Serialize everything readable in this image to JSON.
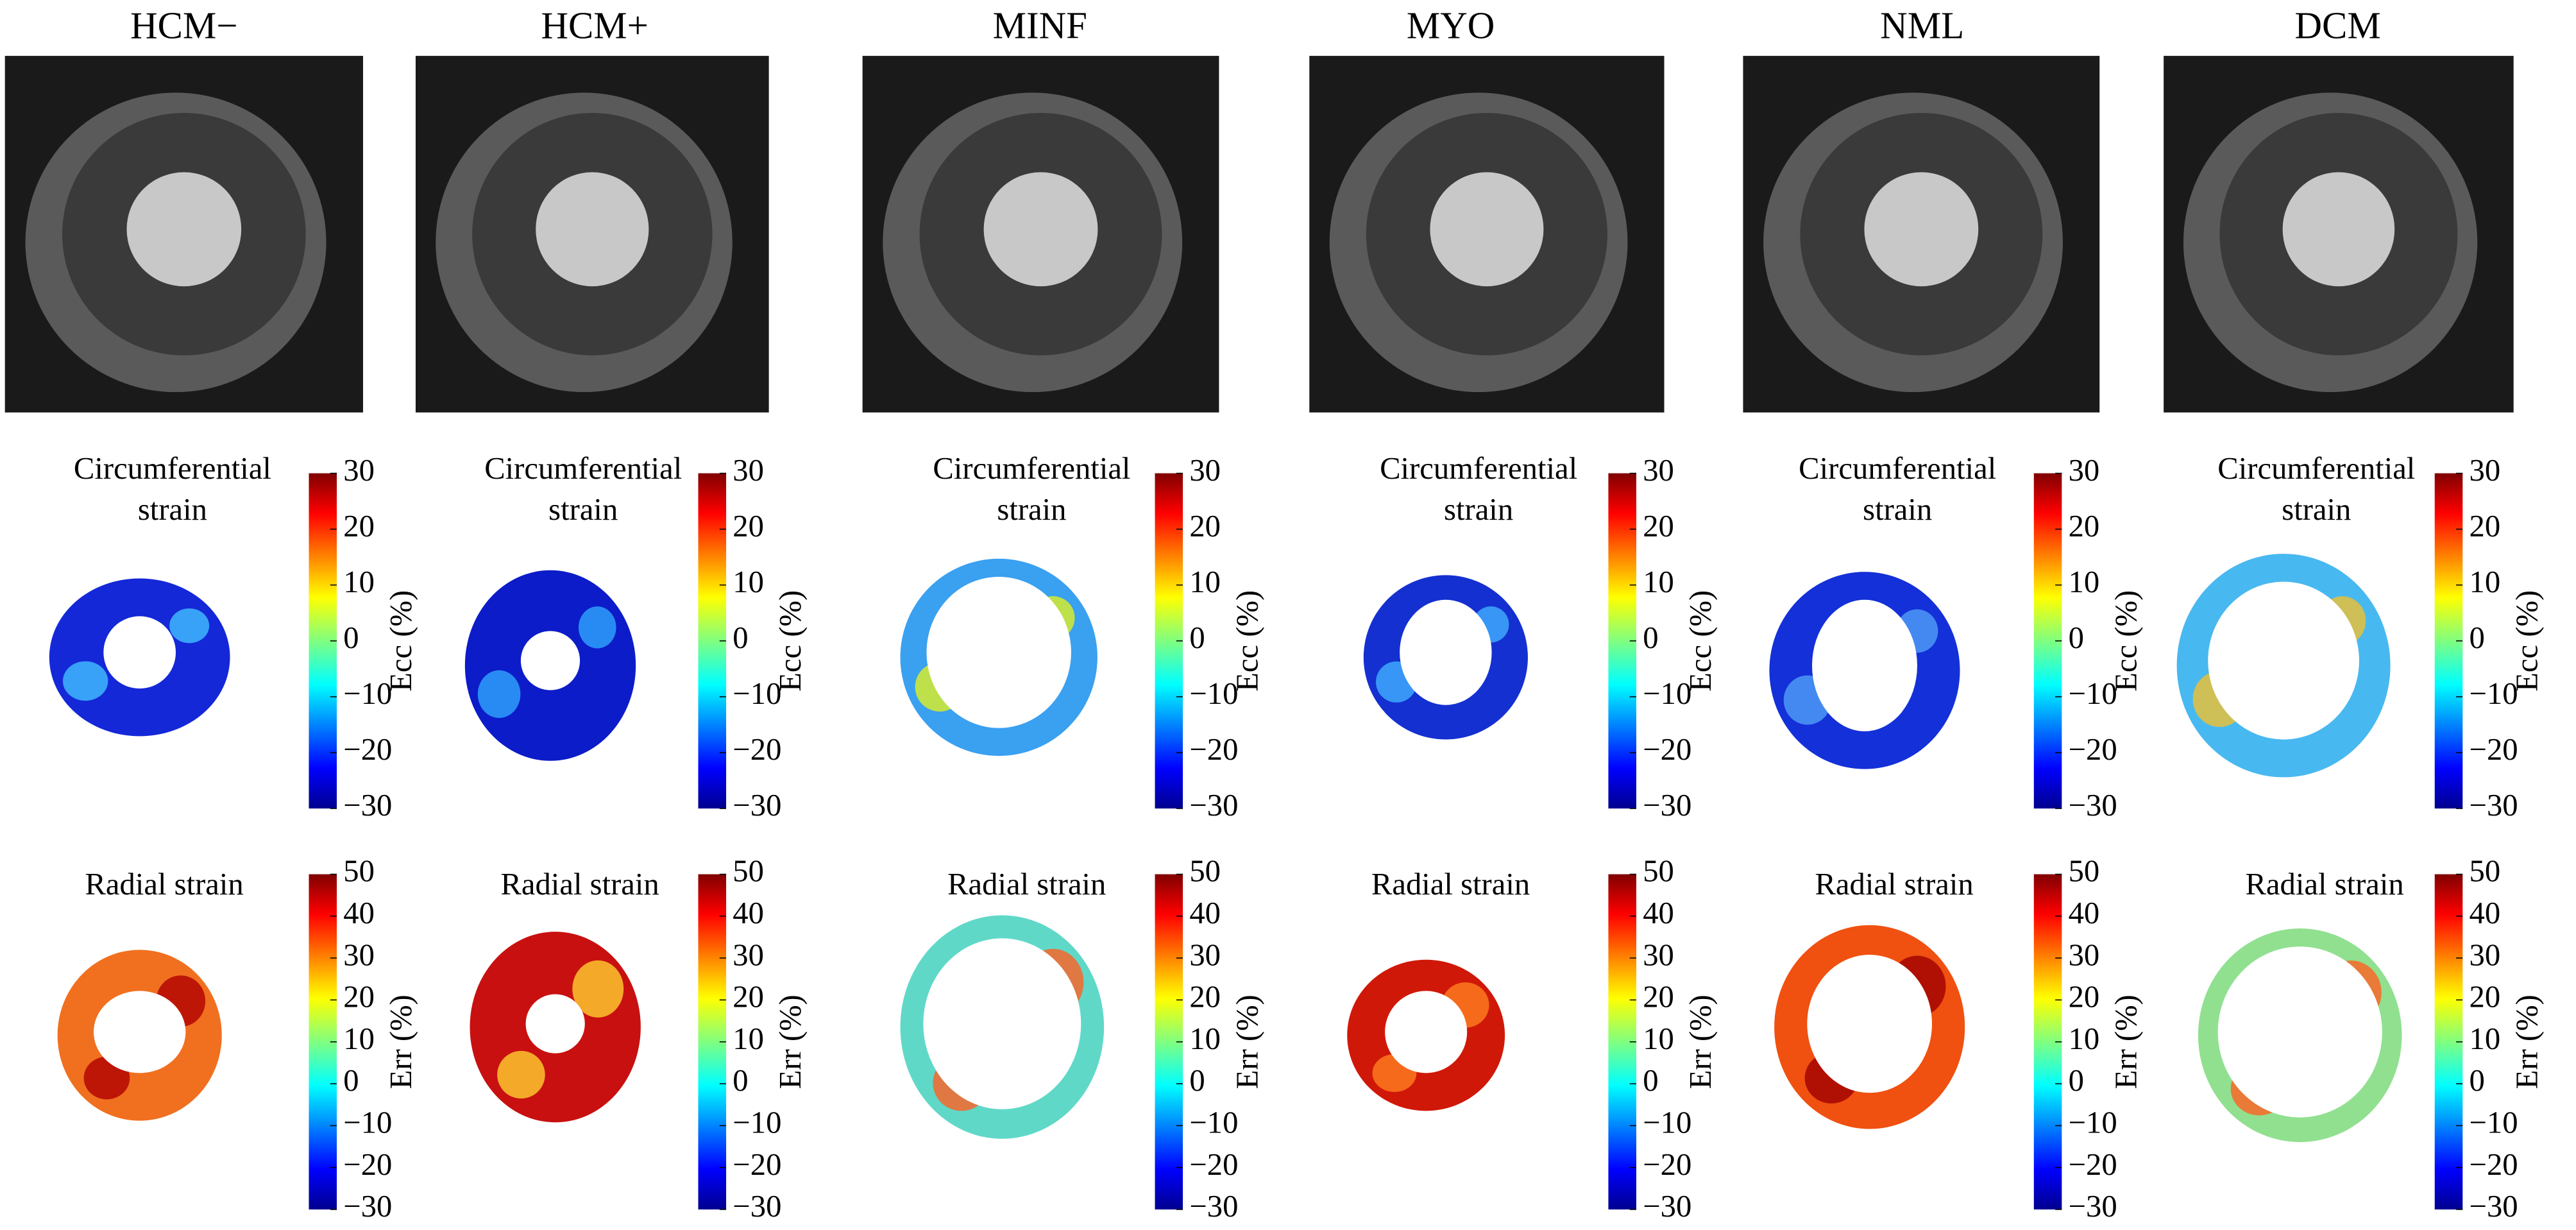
{
  "columns": [
    {
      "label": "HCM−"
    },
    {
      "label": "HCM+"
    },
    {
      "label": "MINF"
    },
    {
      "label": "MYO"
    },
    {
      "label": "NML"
    },
    {
      "label": "DCM"
    }
  ],
  "circumferential": {
    "title_lines": [
      "Circumferential",
      "strain"
    ],
    "colorbar_label": "Ecc (%)",
    "ticks": [
      "30",
      "20",
      "10",
      "0",
      "−10",
      "−20",
      "−30"
    ]
  },
  "radial": {
    "title": "Radial strain",
    "colorbar_label": "Err (%)",
    "ticks": [
      "50",
      "40",
      "30",
      "20",
      "10",
      "0",
      "−10",
      "−20",
      "−30"
    ]
  }
}
